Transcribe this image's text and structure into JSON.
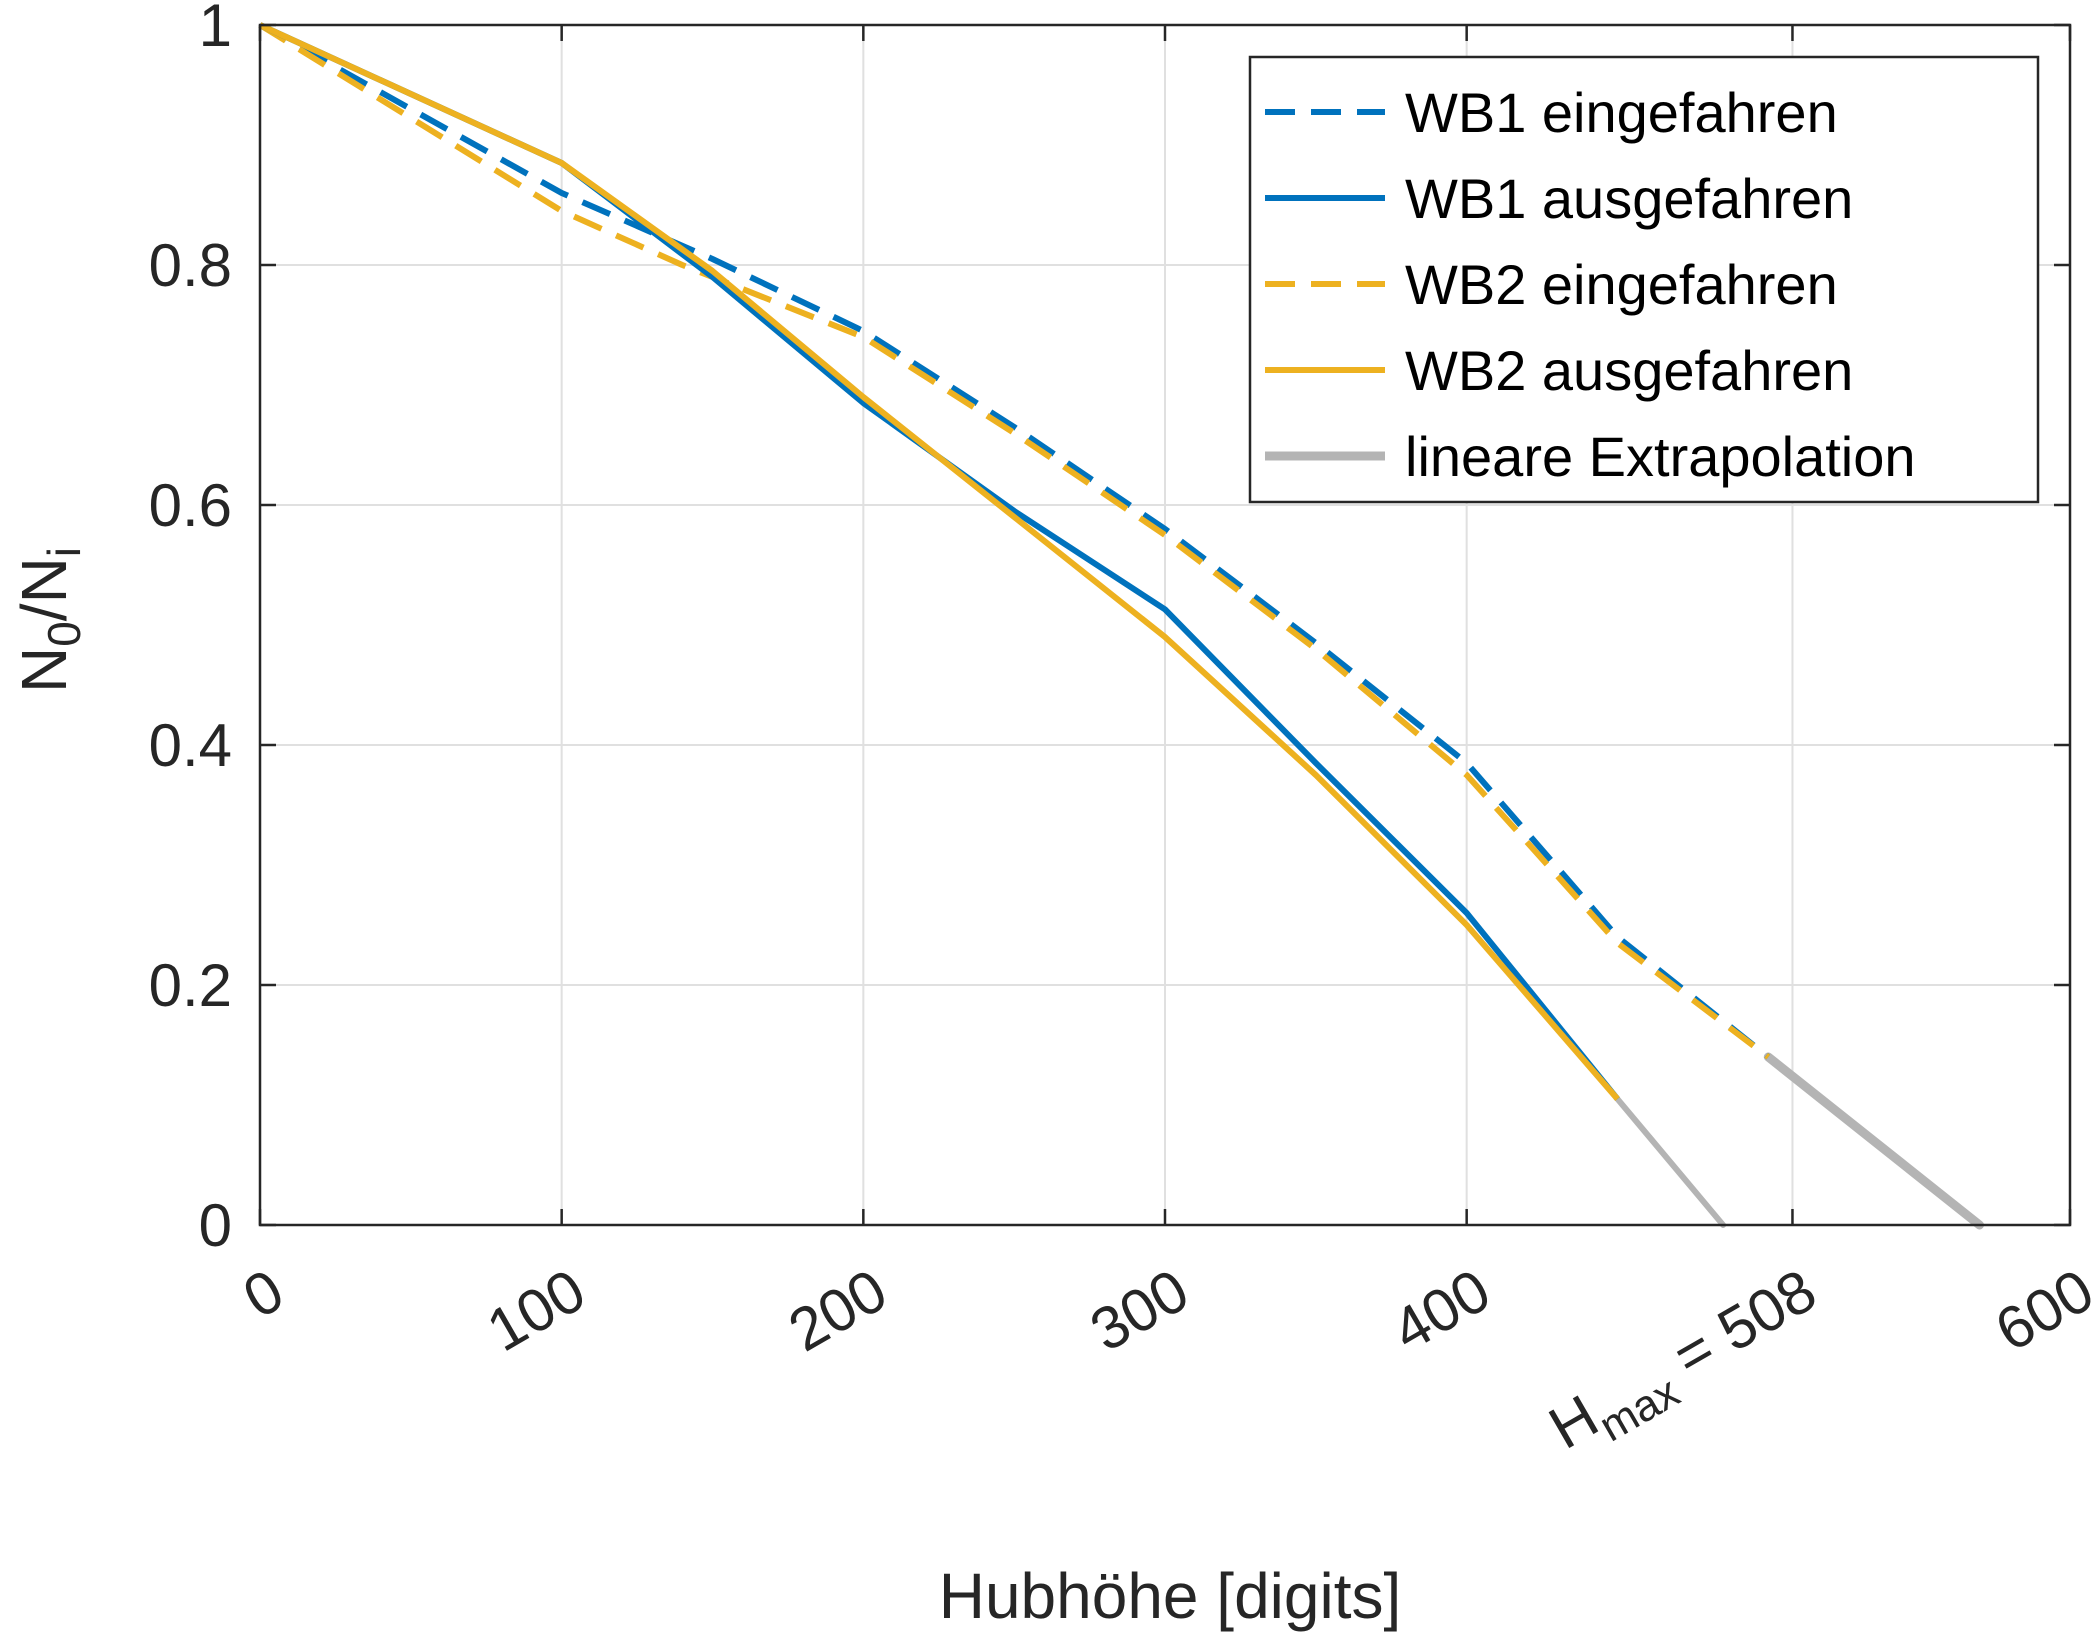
{
  "chart_data": {
    "type": "line",
    "xlabel": "Hubhöhe [digits]",
    "ylabel": {
      "main": "N",
      "sub1": "0",
      "slash": "/N",
      "sub2": "i"
    },
    "xlim": [
      0,
      600
    ],
    "ylim": [
      0,
      1
    ],
    "grid": true,
    "legend_position": "top-right",
    "xticks": [
      {
        "value": 0,
        "label": "0"
      },
      {
        "value": 100,
        "label": "100"
      },
      {
        "value": 200,
        "label": "200"
      },
      {
        "value": 300,
        "label": "300"
      },
      {
        "value": 400,
        "label": "400"
      },
      {
        "value": 508,
        "label_main": "H",
        "label_sub": "max",
        "label_rest": " = 508"
      },
      {
        "value": 600,
        "label": "600"
      }
    ],
    "yticks": [
      {
        "value": 0,
        "label": "0"
      },
      {
        "value": 0.2,
        "label": "0.2"
      },
      {
        "value": 0.4,
        "label": "0.4"
      },
      {
        "value": 0.6,
        "label": "0.6"
      },
      {
        "value": 0.8,
        "label": "0.8"
      },
      {
        "value": 1,
        "label": "1"
      }
    ],
    "colors": {
      "blue": "#0072BD",
      "orange": "#EDB120",
      "gray": "#B4B4B4",
      "axis": "#262626",
      "grid": "#E0E0E0"
    },
    "series": [
      {
        "name": "WB1 eingefahren",
        "color": "#0072BD",
        "dash": "dashed",
        "x": [
          0,
          100,
          150,
          200,
          250,
          300,
          350,
          400,
          450,
          500
        ],
        "y": [
          1,
          0.86,
          0.805,
          0.745,
          0.665,
          0.58,
          0.485,
          0.385,
          0.24,
          0.14
        ]
      },
      {
        "name": "WB1 ausgefahren",
        "color": "#0072BD",
        "dash": "solid",
        "x": [
          0,
          100,
          150,
          200,
          250,
          300,
          350,
          400,
          450
        ],
        "y": [
          1,
          0.885,
          0.79,
          0.685,
          0.595,
          0.513,
          0.385,
          0.26,
          0.105
        ]
      },
      {
        "name": "WB2 eingefahren",
        "color": "#EDB120",
        "dash": "dashed",
        "x": [
          0,
          100,
          140,
          200,
          250,
          300,
          350,
          400,
          450,
          500
        ],
        "y": [
          1,
          0.845,
          0.8,
          0.74,
          0.66,
          0.575,
          0.48,
          0.375,
          0.235,
          0.14
        ]
      },
      {
        "name": "WB2 ausgefahren",
        "color": "#EDB120",
        "dash": "solid",
        "x": [
          0,
          100,
          150,
          200,
          250,
          300,
          350,
          400,
          450
        ],
        "y": [
          1,
          0.885,
          0.795,
          0.69,
          0.59,
          0.49,
          0.375,
          0.25,
          0.105
        ]
      },
      {
        "name": "lineare Extrapolation",
        "color": "#B4B4B4",
        "dash": "solid",
        "segments": [
          {
            "x": [
              450,
              485
            ],
            "y": [
              0.105,
              0
            ]
          },
          {
            "x": [
              500,
              570
            ],
            "y": [
              0.14,
              0
            ]
          }
        ]
      }
    ]
  }
}
